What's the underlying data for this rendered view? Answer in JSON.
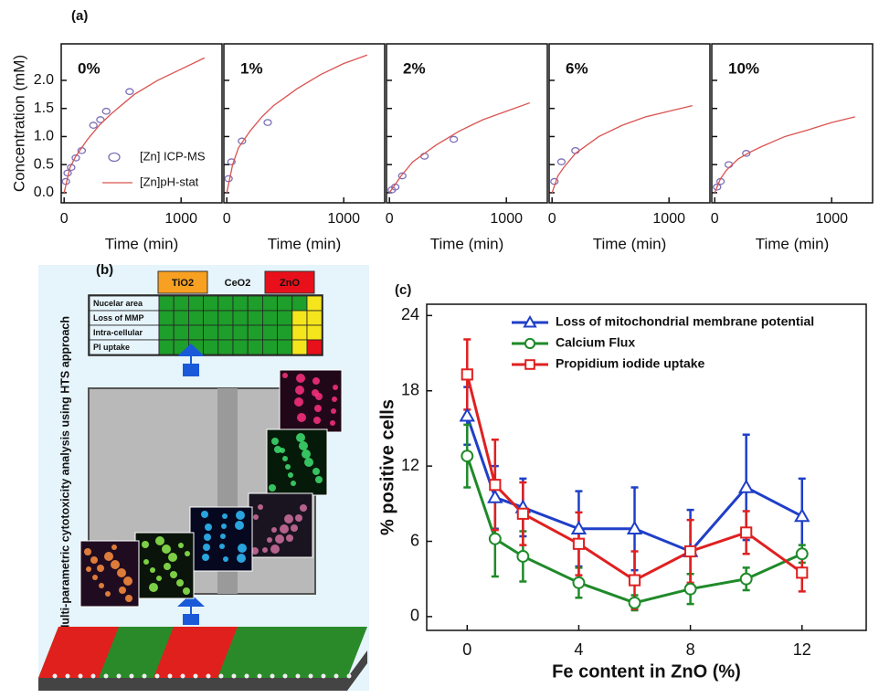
{
  "chart_data": [
    {
      "type": "line",
      "panel_label": "(a)",
      "title": "0%",
      "ylabel": "Concentration (mM)",
      "xlabel": "Time (min)",
      "xlim": [
        -25,
        1350
      ],
      "ylim": [
        -0.18,
        2.65
      ],
      "xticks": [
        0,
        1000
      ],
      "yticks": [
        {
          "value": 0,
          "label": "0.0"
        },
        {
          "value": 0.5,
          "label": "0.5"
        },
        {
          "value": 1,
          "label": "1.0"
        },
        {
          "value": 1.5,
          "label": "1.5"
        },
        {
          "value": 2,
          "label": "2.0"
        }
      ],
      "ytick_labels": true,
      "legend": true,
      "series": [
        {
          "name": "[Zn] ICP-MS",
          "kind": "scatter",
          "color": "#7b6fb8",
          "x": [
            15,
            30,
            60,
            100,
            150,
            250,
            310,
            360,
            560
          ],
          "values": [
            0.2,
            0.35,
            0.45,
            0.62,
            0.75,
            1.2,
            1.3,
            1.45,
            1.8
          ]
        },
        {
          "name": "[Zn]pH-stat",
          "kind": "line",
          "color": "#d9534f",
          "x": [
            0,
            50,
            100,
            200,
            300,
            400,
            600,
            800,
            1000,
            1200
          ],
          "values": [
            0,
            0.45,
            0.65,
            0.95,
            1.2,
            1.4,
            1.75,
            2.0,
            2.2,
            2.4
          ]
        }
      ]
    },
    {
      "type": "line",
      "title": "1%",
      "xlabel": "Time (min)",
      "xlim": [
        -25,
        1350
      ],
      "ylim": [
        -0.18,
        2.65
      ],
      "xticks": [
        0,
        1000
      ],
      "yticks": [
        0,
        0.5,
        1,
        1.5,
        2
      ],
      "ytick_labels": false,
      "legend": false,
      "series": [
        {
          "kind": "scatter",
          "color": "#7b6fb8",
          "x": [
            15,
            40,
            130,
            350
          ],
          "values": [
            0.25,
            0.55,
            0.92,
            1.25
          ]
        },
        {
          "kind": "line",
          "color": "#d9534f",
          "x": [
            0,
            50,
            100,
            200,
            300,
            400,
            600,
            800,
            1000,
            1200
          ],
          "values": [
            0,
            0.5,
            0.8,
            1.1,
            1.35,
            1.55,
            1.85,
            2.1,
            2.3,
            2.45
          ]
        }
      ]
    },
    {
      "type": "line",
      "title": "2%",
      "xlabel": "Time (min)",
      "xlim": [
        -25,
        1350
      ],
      "ylim": [
        -0.18,
        2.65
      ],
      "xticks": [
        0,
        1000
      ],
      "yticks": [
        0,
        0.5,
        1,
        1.5,
        2
      ],
      "ytick_labels": false,
      "legend": false,
      "series": [
        {
          "kind": "scatter",
          "color": "#7b6fb8",
          "x": [
            20,
            50,
            110,
            300,
            550
          ],
          "values": [
            0.05,
            0.1,
            0.3,
            0.65,
            0.95
          ]
        },
        {
          "kind": "line",
          "color": "#d9534f",
          "x": [
            0,
            50,
            100,
            200,
            300,
            400,
            600,
            800,
            1000,
            1200
          ],
          "values": [
            0,
            0.15,
            0.3,
            0.55,
            0.7,
            0.85,
            1.1,
            1.3,
            1.45,
            1.6
          ]
        }
      ]
    },
    {
      "type": "line",
      "title": "6%",
      "xlabel": "Time (min)",
      "xlim": [
        -25,
        1350
      ],
      "ylim": [
        -0.18,
        2.65
      ],
      "xticks": [
        0,
        1000
      ],
      "yticks": [
        0,
        0.5,
        1,
        1.5,
        2
      ],
      "ytick_labels": false,
      "legend": false,
      "series": [
        {
          "kind": "scatter",
          "color": "#7b6fb8",
          "x": [
            20,
            80,
            200
          ],
          "values": [
            0.2,
            0.55,
            0.75
          ]
        },
        {
          "kind": "line",
          "color": "#d9534f",
          "x": [
            0,
            50,
            100,
            200,
            300,
            400,
            600,
            800,
            1000,
            1200
          ],
          "values": [
            0,
            0.3,
            0.45,
            0.7,
            0.85,
            1.0,
            1.2,
            1.35,
            1.45,
            1.55
          ]
        }
      ]
    },
    {
      "type": "line",
      "title": "10%",
      "xlabel": "Time (min)",
      "xlim": [
        -25,
        1350
      ],
      "ylim": [
        -0.18,
        2.65
      ],
      "xticks": [
        0,
        1000
      ],
      "yticks": [
        0,
        0.5,
        1,
        1.5,
        2
      ],
      "ytick_labels": false,
      "legend": false,
      "series": [
        {
          "kind": "scatter",
          "color": "#7b6fb8",
          "x": [
            20,
            50,
            120,
            270
          ],
          "values": [
            0.1,
            0.2,
            0.5,
            0.7
          ]
        },
        {
          "kind": "line",
          "color": "#d9534f",
          "x": [
            0,
            50,
            100,
            200,
            300,
            400,
            600,
            800,
            1000,
            1200
          ],
          "values": [
            0,
            0.25,
            0.4,
            0.6,
            0.72,
            0.82,
            1.0,
            1.12,
            1.25,
            1.35
          ]
        }
      ]
    },
    {
      "type": "errorline",
      "panel_label": "(c)",
      "ylabel": "% positive cells",
      "xlabel": "Fe content in ZnO (%)",
      "xlim": [
        -1.45,
        14.3
      ],
      "ylim": [
        -1.1,
        24.9
      ],
      "xticks": [
        0,
        4,
        8,
        12
      ],
      "yticks": [
        0,
        6,
        12,
        18,
        24
      ],
      "x": [
        0,
        1,
        2,
        4,
        6,
        8,
        10,
        12
      ],
      "legend": "upper left",
      "series": [
        {
          "name": "Loss of mitochondrial membrane potential",
          "color": "#1f3fc8",
          "marker": "triangle",
          "values": [
            16,
            9.5,
            8.7,
            7,
            7,
            5.2,
            10.3,
            8
          ],
          "errors": [
            2.3,
            2.5,
            2.3,
            3,
            3.3,
            3.3,
            4.2,
            3
          ]
        },
        {
          "name": "Calcium Flux",
          "color": "#1f8a2a",
          "marker": "circle",
          "values": [
            12.8,
            6.2,
            4.8,
            2.7,
            1.1,
            2.2,
            3,
            5
          ],
          "errors": [
            2.5,
            3,
            2,
            1.2,
            0.6,
            1.2,
            0.9,
            0.7
          ]
        },
        {
          "name": "Propidium iodide uptake",
          "color": "#e02020",
          "marker": "square",
          "values": [
            19.3,
            10.5,
            8.2,
            5.8,
            2.9,
            5.2,
            6.7,
            3.5
          ],
          "errors": [
            2.8,
            3.6,
            2.5,
            2.5,
            2.3,
            2.5,
            1.7,
            1.5
          ]
        }
      ]
    }
  ],
  "panel_b": {
    "label": "(b)",
    "side_text": "Multi-parametric cytotoxicity analysis using HTS approach",
    "headers": [
      "TiO2",
      "CeO2",
      "ZnO"
    ],
    "rows": [
      "Nucelar area",
      "Loss of MMP",
      "Intra-cellular",
      "PI uptake"
    ]
  }
}
